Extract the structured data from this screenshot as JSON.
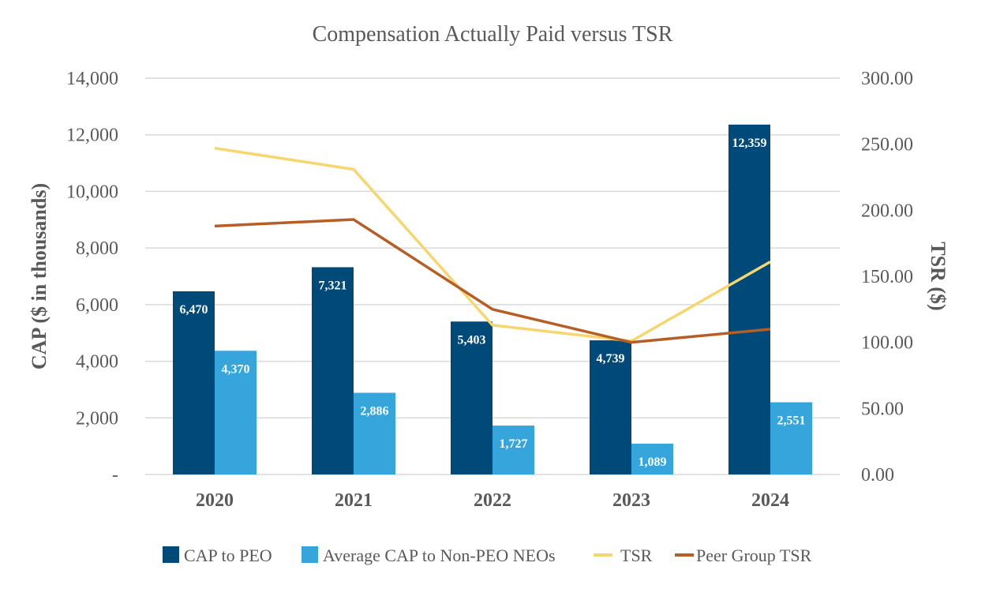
{
  "chart_data": {
    "type": "bar+line",
    "title": "Compensation Actually Paid versus TSR",
    "categories": [
      "2020",
      "2021",
      "2022",
      "2023",
      "2024"
    ],
    "ylabel_left": "CAP ($ in thousands)",
    "ylabel_right": "TSR ($)",
    "left_axis": {
      "min": 0,
      "max": 14000,
      "ticks": [
        0,
        2000,
        4000,
        6000,
        8000,
        10000,
        12000,
        14000
      ],
      "tick_labels": [
        "-",
        "2,000",
        "4,000",
        "6,000",
        "8,000",
        "10,000",
        "12,000",
        "14,000"
      ]
    },
    "right_axis": {
      "min": 0,
      "max": 300,
      "ticks": [
        0,
        50,
        100,
        150,
        200,
        250,
        300
      ],
      "tick_labels": [
        "0.00",
        "50.00",
        "100.00",
        "150.00",
        "200.00",
        "250.00",
        "300.00"
      ]
    },
    "gridlines": true,
    "legend_position": "bottom",
    "series": [
      {
        "name": "CAP to PEO",
        "kind": "bar",
        "axis": "left",
        "color": "#004A7A",
        "values": [
          6470,
          7321,
          5403,
          4739,
          12359
        ],
        "labels": [
          "6,470",
          "7,321",
          "5,403",
          "4,739",
          "12,359"
        ]
      },
      {
        "name": "Average CAP to Non-PEO NEOs",
        "kind": "bar",
        "axis": "left",
        "color": "#35A5DC",
        "values": [
          4370,
          2886,
          1727,
          1089,
          2551
        ],
        "labels": [
          "4,370",
          "2,886",
          "1,727",
          "1,089",
          "2,551"
        ]
      },
      {
        "name": "TSR",
        "kind": "line",
        "axis": "right",
        "color": "#F6D66E",
        "values": [
          247,
          231,
          113,
          101,
          161
        ]
      },
      {
        "name": "Peer Group TSR",
        "kind": "line",
        "axis": "right",
        "color": "#B65E25",
        "values": [
          188,
          193,
          125,
          100,
          110
        ]
      }
    ]
  },
  "colors": {
    "text": "#595959",
    "grid": "#D9D9D9"
  }
}
